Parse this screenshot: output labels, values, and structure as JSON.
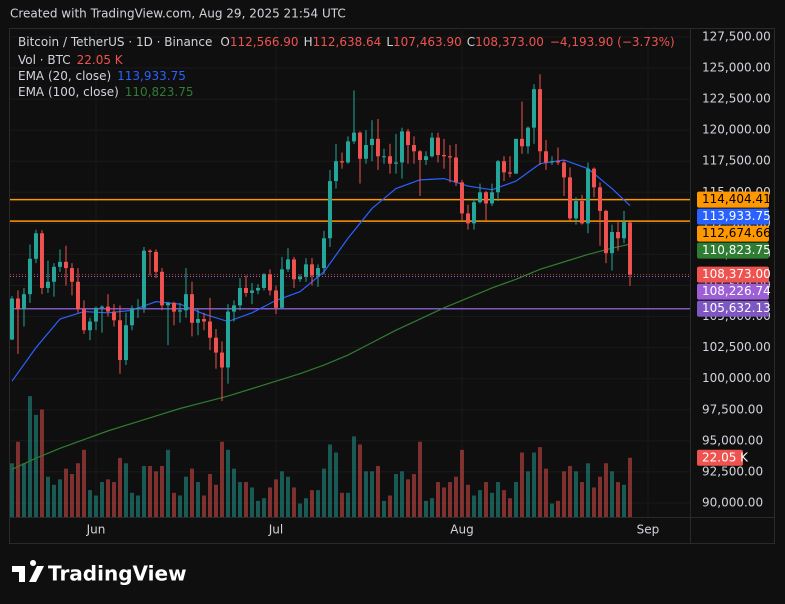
{
  "caption": "Created with TradingView.com, Aug 29, 2025 21:54 UTC",
  "brand": "TradingView",
  "chart_data": {
    "type": "candlestick",
    "header": {
      "symbol": "Bitcoin / TetherUS · 1D · Binance",
      "fields": [
        [
          "O",
          "112,566.90"
        ],
        [
          "H",
          "112,638.64"
        ],
        [
          "L",
          "107,463.90"
        ],
        [
          "C",
          "108,373.00"
        ]
      ],
      "change": "−4,193.90 (−3.73%)"
    },
    "up_color": "#26a69a",
    "down_color": "#ef5350",
    "xlim": [
      -0.33,
      113
    ],
    "xticks": [
      {
        "value": 14,
        "label": "Jun"
      },
      {
        "value": 44,
        "label": "Jul"
      },
      {
        "value": 75,
        "label": "Aug"
      },
      {
        "value": 106,
        "label": "Sep"
      }
    ],
    "ylim": [
      88870,
      128220
    ],
    "yticks": [
      {
        "value": 90000,
        "label": "90,000.00"
      },
      {
        "value": 92500,
        "label": "92,500.00"
      },
      {
        "value": 95000,
        "label": "95,000.00"
      },
      {
        "value": 97500,
        "label": "97,500.00"
      },
      {
        "value": 100000,
        "label": "100,000.00"
      },
      {
        "value": 102500,
        "label": "102,500.00"
      },
      {
        "value": 105000,
        "label": "105,000.00"
      },
      {
        "value": 107500,
        "label": "107,500.00"
      },
      {
        "value": 110000,
        "label": "110,000.00"
      },
      {
        "value": 112500,
        "label": "112,500.00"
      },
      {
        "value": 115000,
        "label": "115,000.00"
      },
      {
        "value": 117500,
        "label": "117,500.00"
      },
      {
        "value": 120000,
        "label": "120,000.00"
      },
      {
        "value": 122500,
        "label": "122,500.00"
      },
      {
        "value": 125000,
        "label": "125,000.00"
      },
      {
        "value": 127500,
        "label": "127,500.00"
      }
    ],
    "grid": true,
    "candles": [
      [
        103150,
        106650,
        103100,
        106450
      ],
      [
        106450,
        107100,
        102000,
        105600
      ],
      [
        105600,
        107300,
        104200,
        106800
      ],
      [
        106800,
        110800,
        106100,
        109650
      ],
      [
        109650,
        111980,
        109300,
        111700
      ],
      [
        111700,
        111950,
        106800,
        107300
      ],
      [
        107300,
        109500,
        106900,
        107800
      ],
      [
        107800,
        109300,
        106600,
        109000
      ],
      [
        109000,
        110400,
        108600,
        109400
      ],
      [
        109400,
        110700,
        107500,
        108900
      ],
      [
        108900,
        109300,
        106700,
        107800
      ],
      [
        107800,
        108900,
        105300,
        105600
      ],
      [
        105600,
        106300,
        103600,
        103900
      ],
      [
        103900,
        104900,
        103100,
        104600
      ],
      [
        104600,
        105800,
        103900,
        105700
      ],
      [
        105700,
        105900,
        103700,
        105800
      ],
      [
        105800,
        106800,
        105000,
        105400
      ],
      [
        105400,
        106000,
        104200,
        104700
      ],
      [
        104700,
        105900,
        100400,
        101500
      ],
      [
        101500,
        105300,
        101100,
        104300
      ],
      [
        104300,
        105900,
        103900,
        105600
      ],
      [
        105600,
        106400,
        104900,
        105700
      ],
      [
        105700,
        110600,
        105300,
        110300
      ],
      [
        110300,
        110400,
        108300,
        110200
      ],
      [
        110200,
        110400,
        108100,
        108600
      ],
      [
        108600,
        108900,
        105500,
        105900
      ],
      [
        105900,
        106200,
        102700,
        106100
      ],
      [
        106100,
        106200,
        104300,
        105400
      ],
      [
        105400,
        106100,
        104500,
        105500
      ],
      [
        105500,
        108900,
        104900,
        106800
      ],
      [
        106800,
        107800,
        103400,
        104500
      ],
      [
        104500,
        105600,
        103500,
        104800
      ],
      [
        104800,
        105300,
        103900,
        104600
      ],
      [
        104600,
        106500,
        102300,
        103300
      ],
      [
        103300,
        104000,
        100800,
        102100
      ],
      [
        102100,
        103000,
        98200,
        100900
      ],
      [
        100900,
        106000,
        99600,
        105400
      ],
      [
        105400,
        106300,
        104600,
        105900
      ],
      [
        105900,
        108100,
        105500,
        107300
      ],
      [
        107300,
        108300,
        106600,
        106900
      ],
      [
        106900,
        107700,
        106000,
        107100
      ],
      [
        107100,
        107600,
        106800,
        107300
      ],
      [
        107300,
        108500,
        107100,
        108400
      ],
      [
        108400,
        108800,
        106700,
        107100
      ],
      [
        107100,
        107500,
        105200,
        105700
      ],
      [
        105700,
        109800,
        105600,
        108800
      ],
      [
        108800,
        110500,
        108600,
        109600
      ],
      [
        109600,
        109800,
        107300,
        108000
      ],
      [
        108000,
        108400,
        107800,
        108200
      ],
      [
        108200,
        109700,
        107800,
        109200
      ],
      [
        109200,
        109700,
        107500,
        108300
      ],
      [
        108300,
        109200,
        107400,
        108900
      ],
      [
        108900,
        111900,
        108400,
        111300
      ],
      [
        111300,
        116800,
        110600,
        115900
      ],
      [
        115900,
        118900,
        115300,
        117500
      ],
      [
        117500,
        118200,
        116900,
        117400
      ],
      [
        117400,
        119500,
        117300,
        119100
      ],
      [
        119100,
        123200,
        118900,
        119800
      ],
      [
        119800,
        119900,
        115700,
        117700
      ],
      [
        117700,
        120000,
        117300,
        118800
      ],
      [
        118800,
        120800,
        117500,
        119300
      ],
      [
        119300,
        120900,
        116800,
        117900
      ],
      [
        117900,
        118500,
        117300,
        117900
      ],
      [
        117900,
        118900,
        116500,
        117300
      ],
      [
        117300,
        119700,
        116500,
        117400
      ],
      [
        117400,
        120200,
        116100,
        119900
      ],
      [
        119900,
        120100,
        117300,
        118800
      ],
      [
        118800,
        119500,
        117300,
        118300
      ],
      [
        118300,
        118400,
        114700,
        117600
      ],
      [
        117600,
        118300,
        117200,
        117900
      ],
      [
        117900,
        119800,
        117800,
        119400
      ],
      [
        119400,
        119800,
        117400,
        118000
      ],
      [
        118000,
        119300,
        116900,
        117900
      ],
      [
        117900,
        118800,
        115800,
        117800
      ],
      [
        117800,
        118900,
        115500,
        115800
      ],
      [
        115800,
        116000,
        112700,
        113300
      ],
      [
        113300,
        114000,
        112000,
        112500
      ],
      [
        112500,
        114500,
        112000,
        114200
      ],
      [
        114200,
        115700,
        114100,
        115000
      ],
      [
        115000,
        115100,
        112700,
        114100
      ],
      [
        114100,
        115700,
        113900,
        115000
      ],
      [
        115000,
        117600,
        114300,
        117500
      ],
      [
        117500,
        117900,
        115900,
        116600
      ],
      [
        116600,
        117900,
        116200,
        116500
      ],
      [
        116500,
        119300,
        116500,
        119300
      ],
      [
        119300,
        122300,
        118100,
        118700
      ],
      [
        118700,
        120300,
        118100,
        120200
      ],
      [
        120200,
        123700,
        118900,
        123300
      ],
      [
        123300,
        124500,
        117200,
        118300
      ],
      [
        118300,
        119200,
        116800,
        117400
      ],
      [
        117400,
        117900,
        117200,
        117500
      ],
      [
        117500,
        118600,
        117200,
        117400
      ],
      [
        117400,
        117600,
        114700,
        116200
      ],
      [
        116200,
        117000,
        112700,
        112900
      ],
      [
        112900,
        114600,
        112400,
        114300
      ],
      [
        114300,
        114800,
        112400,
        112500
      ],
      [
        112500,
        117400,
        111700,
        116900
      ],
      [
        116900,
        117000,
        114600,
        115400
      ],
      [
        115400,
        115800,
        110700,
        113500
      ],
      [
        113500,
        113600,
        109300,
        110100
      ],
      [
        110100,
        112400,
        108700,
        111800
      ],
      [
        111800,
        112600,
        110300,
        111300
      ],
      [
        111300,
        113500,
        110900,
        112600
      ],
      [
        112566.9,
        112638.64,
        107463.9,
        108373
      ]
    ],
    "last_label": "108,373.00",
    "volume_name": "Vol · BTC",
    "volume_lim": [
      0,
      182000
    ],
    "volume": [
      20000,
      28000,
      20000,
      45000,
      38000,
      40000,
      15000,
      12000,
      14000,
      18000,
      16000,
      20000,
      25000,
      10000,
      8000,
      13000,
      14000,
      13000,
      22000,
      20000,
      9000,
      8000,
      19000,
      19000,
      17000,
      19000,
      25000,
      9000,
      8000,
      15000,
      18000,
      13000,
      8000,
      16000,
      12000,
      28000,
      25000,
      18000,
      13000,
      13000,
      11000,
      6000,
      7000,
      11000,
      14000,
      17000,
      15000,
      11000,
      5000,
      7000,
      10000,
      10000,
      18000,
      27000,
      24000,
      9000,
      9000,
      30000,
      27000,
      17000,
      17000,
      19000,
      6000,
      8000,
      16000,
      17000,
      14000,
      16000,
      28000,
      6000,
      7000,
      13000,
      11000,
      13000,
      15000,
      25000,
      12000,
      8000,
      10000,
      13000,
      9000,
      13000,
      10000,
      7000,
      13000,
      24000,
      17000,
      24000,
      26000,
      18000,
      5000,
      6000,
      17000,
      19000,
      17000,
      13000,
      20000,
      11000,
      15000,
      20000,
      17000,
      13000,
      12000,
      22050
    ],
    "volume_label": "22.05 K",
    "ema": [
      {
        "name": "EMA (20, close)",
        "color": "#2962ff",
        "last_label": "113,933.75",
        "x": [
          0,
          4,
          8,
          12,
          16,
          20,
          24,
          28,
          32,
          36,
          40,
          44,
          48,
          52,
          56,
          60,
          64,
          68,
          72,
          76,
          80,
          84,
          88,
          92,
          96,
          100,
          103
        ],
        "values": [
          99800,
          102500,
          104800,
          105400,
          105300,
          105500,
          106200,
          106000,
          105200,
          104600,
          105300,
          106300,
          107000,
          108600,
          111300,
          113700,
          115300,
          116000,
          116100,
          115500,
          115200,
          115900,
          117300,
          117600,
          116900,
          115300,
          113933.75
        ]
      },
      {
        "name": "EMA (100, close)",
        "color": "#2e7d32",
        "last_label": "110,823.75",
        "x": [
          0,
          4,
          8,
          12,
          16,
          20,
          24,
          28,
          32,
          36,
          40,
          44,
          48,
          52,
          56,
          60,
          64,
          68,
          72,
          76,
          80,
          84,
          88,
          92,
          96,
          100,
          103
        ],
        "values": [
          92700,
          93600,
          94400,
          95100,
          95800,
          96400,
          97000,
          97600,
          98100,
          98600,
          99200,
          99800,
          100400,
          101100,
          101900,
          102900,
          103900,
          104800,
          105700,
          106500,
          107300,
          108000,
          108800,
          109400,
          110000,
          110500,
          110823.75
        ]
      }
    ],
    "hlines": [
      {
        "value": 114404.41,
        "label": "114,404.41",
        "color": "#ff9800",
        "style": "solid"
      },
      {
        "value": 112674.66,
        "label": "112,674.66",
        "color": "#ff9800",
        "style": "solid"
      },
      {
        "value": 108226.74,
        "label": "108,226.74",
        "color": "#9c5fd6",
        "style": "dotted"
      },
      {
        "value": 105632.13,
        "label": "105,632.13",
        "color": "#7e57c2",
        "style": "solid"
      }
    ]
  }
}
